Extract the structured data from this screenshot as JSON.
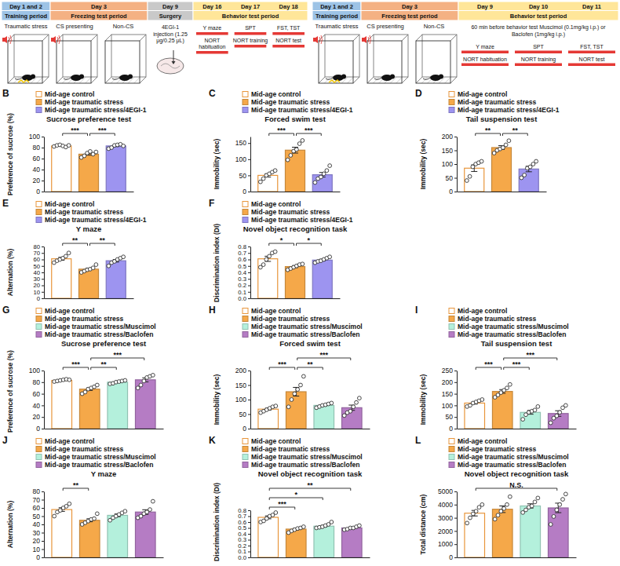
{
  "diagram": {
    "timelines": [
      {
        "segments": [
          {
            "day": "Day 1 and 2",
            "period": "Training period",
            "cages": [
              "Traumatic stress"
            ]
          },
          {
            "day": "Day 3",
            "period": "Freezing test period",
            "cages": [
              "CS presenting",
              "Non-CS"
            ]
          },
          {
            "day": "Day 9",
            "period": "Surgery",
            "note": "4EGI-1 injection (1.25 μg/0.25 μL)"
          },
          {
            "days": [
              "Day 16",
              "Day 17",
              "Day 18"
            ],
            "period": "Behavior test period",
            "tests": [
              [
                "Y maze",
                "NORT habituation"
              ],
              [
                "SPT",
                "NORT training"
              ],
              [
                "FST, TST",
                "NORT test"
              ]
            ]
          }
        ]
      },
      {
        "segments": [
          {
            "day": "Day 1 and 2",
            "period": "Training period",
            "cages": [
              "Traumatic stress"
            ]
          },
          {
            "day": "Day 3",
            "period": "Freezing test period",
            "cages": [
              "CS presenting",
              "Non-CS"
            ]
          },
          {
            "days": [
              "Day 9",
              "Day 10",
              "Day 11"
            ],
            "period": "Behavior test period",
            "note": "60 min before behavior test Muscimol (0.1mg/kg i.p.) or Baclofen (1mg/kg i.p.)",
            "tests": [
              [
                "Y maze",
                "NORT habituation"
              ],
              [
                "SPT",
                "NORT training"
              ],
              [
                "FST, TST",
                "NORT test"
              ]
            ]
          }
        ]
      }
    ]
  },
  "chart_data": [
    {
      "type": "bar",
      "panel": "B",
      "title": "Sucrose preference test",
      "y_label": "Preference of sucrose (%)",
      "categories": [
        "Mid-age control",
        "Mid-age traumatic stress",
        "Mid-age traumatic stress/4EGI-1"
      ],
      "colors": [
        "#ffffff",
        "#f5a849",
        "#9d94f0"
      ],
      "values": [
        83,
        68,
        83
      ],
      "errors": [
        0.6,
        1.8,
        1.2
      ],
      "points": [
        [
          82,
          84,
          85,
          83,
          81,
          84
        ],
        [
          62,
          65,
          70,
          73,
          68,
          72
        ],
        [
          78,
          80,
          84,
          85,
          86,
          83
        ]
      ],
      "ylim": [
        0,
        100
      ],
      "yticks": [
        0,
        20,
        40,
        60,
        80,
        100
      ],
      "annotations": [
        {
          "text": "***",
          "between": [
            0,
            1
          ]
        },
        {
          "text": "***",
          "between": [
            1,
            2
          ]
        }
      ],
      "legend": "top",
      "tick_labels": "y"
    },
    {
      "type": "bar",
      "panel": "C",
      "title": "Forced swim test",
      "y_label": "Immobility (sec)",
      "categories": [
        "Mid-age control",
        "Mid-age traumatic stress",
        "Mid-age traumatic stress/4EGI-1"
      ],
      "colors": [
        "#ffffff",
        "#f5a849",
        "#9d94f0"
      ],
      "values": [
        50,
        128,
        52
      ],
      "errors": [
        5,
        9,
        7
      ],
      "points": [
        [
          30,
          40,
          50,
          55,
          60,
          65
        ],
        [
          98,
          112,
          125,
          130,
          148,
          158
        ],
        [
          28,
          40,
          45,
          55,
          65,
          80
        ]
      ],
      "ylim": [
        0,
        170
      ],
      "yticks": [
        0,
        50,
        100,
        150
      ],
      "annotations": [
        {
          "text": "***",
          "between": [
            0,
            1
          ]
        },
        {
          "text": "***",
          "between": [
            1,
            2
          ]
        }
      ],
      "legend": "top",
      "tick_labels": "y"
    },
    {
      "type": "bar",
      "panel": "D",
      "title": "Tail suspension test",
      "y_label": "Immobility (sec)",
      "categories": [
        "Mid-age control",
        "Mid-age traumatic stress",
        "Mid-age traumatic stress/4EGI-1"
      ],
      "colors": [
        "#ffffff",
        "#f5a849",
        "#9d94f0"
      ],
      "values": [
        85,
        160,
        82
      ],
      "errors": [
        12,
        7,
        10
      ],
      "points": [
        [
          40,
          55,
          90,
          100,
          105,
          110
        ],
        [
          140,
          150,
          155,
          160,
          170,
          185
        ],
        [
          50,
          60,
          85,
          90,
          100,
          110
        ]
      ],
      "ylim": [
        0,
        200
      ],
      "yticks": [
        0,
        50,
        100,
        150,
        200
      ],
      "annotations": [
        {
          "text": "**",
          "between": [
            0,
            1
          ]
        },
        {
          "text": "**",
          "between": [
            1,
            2
          ]
        }
      ],
      "legend": "top",
      "tick_labels": "y"
    },
    {
      "type": "bar",
      "panel": "E",
      "title": "Y maze",
      "y_label": "Alternation (%)",
      "categories": [
        "Mid-age control",
        "Mid-age traumatic stress",
        "Mid-age traumatic stress/4EGI-1"
      ],
      "colors": [
        "#ffffff",
        "#f5a849",
        "#9d94f0"
      ],
      "values": [
        61,
        45,
        58
      ],
      "errors": [
        2.2,
        1.7,
        2
      ],
      "points": [
        [
          55,
          58,
          60,
          62,
          65,
          70
        ],
        [
          40,
          42,
          44,
          45,
          47,
          52
        ],
        [
          50,
          55,
          57,
          60,
          62,
          64
        ]
      ],
      "ylim": [
        0,
        80
      ],
      "yticks": [
        0,
        10,
        20,
        30,
        40,
        50,
        60,
        70,
        80
      ],
      "annotations": [
        {
          "text": "**",
          "between": [
            0,
            1
          ]
        },
        {
          "text": "**",
          "between": [
            1,
            2
          ]
        }
      ],
      "legend": "top",
      "tick_labels": "y"
    },
    {
      "type": "bar",
      "panel": "F",
      "title": "Novel object recognition task",
      "y_label": "Discrimination index (DI)",
      "categories": [
        "Mid-age control",
        "Mid-age traumatic stress",
        "Mid-age traumatic stress/4EGI-1"
      ],
      "colors": [
        "#ffffff",
        "#f5a849",
        "#9d94f0"
      ],
      "values": [
        0.61,
        0.49,
        0.59
      ],
      "errors": [
        0.04,
        0.015,
        0.013
      ],
      "points": [
        [
          0.48,
          0.52,
          0.6,
          0.65,
          0.7,
          0.72
        ],
        [
          0.44,
          0.46,
          0.48,
          0.5,
          0.52,
          0.53
        ],
        [
          0.55,
          0.57,
          0.58,
          0.6,
          0.62,
          0.64
        ]
      ],
      "ylim": [
        0,
        0.8
      ],
      "yticks": [
        {
          "value": 0,
          "label": "0.0"
        },
        0.1,
        0.2,
        0.3,
        0.4,
        0.5,
        0.6,
        0.7,
        0.8
      ],
      "annotations": [
        {
          "text": "*",
          "between": [
            0,
            1
          ]
        },
        {
          "text": "*",
          "between": [
            1,
            2
          ]
        }
      ],
      "legend": "top",
      "tick_labels": "y"
    },
    {
      "type": "bar",
      "panel": "G",
      "title": "Sucrose preference test",
      "y_label": "Preference of sucrose (%)",
      "categories": [
        "Mid-age control",
        "Mid-age traumatic stress",
        "Mid-age traumatic stress/Muscimol",
        "Mid-age traumatic stress/Baclofen"
      ],
      "colors": [
        "#ffffff",
        "#f5a849",
        "#b4f0dc",
        "#b57cc4"
      ],
      "values": [
        83,
        68,
        80,
        84
      ],
      "errors": [
        0.6,
        2.2,
        1,
        3.5
      ],
      "points": [
        [
          81,
          82,
          83,
          84,
          85,
          84
        ],
        [
          60,
          63,
          68,
          70,
          72,
          75
        ],
        [
          77,
          78,
          80,
          81,
          82,
          83
        ],
        [
          70,
          75,
          82,
          88,
          90,
          92
        ]
      ],
      "ylim": [
        0,
        100
      ],
      "yticks": [
        0,
        20,
        40,
        60,
        80,
        100
      ],
      "annotations": [
        {
          "text": "***",
          "between": [
            0,
            1
          ]
        },
        {
          "text": "**",
          "between": [
            1,
            2
          ]
        },
        {
          "text": "***",
          "between": [
            1,
            3
          ]
        }
      ],
      "legend": "top",
      "tick_labels": "y"
    },
    {
      "type": "bar",
      "panel": "H",
      "title": "Forced swim test",
      "y_label": "Immobility (sec)",
      "categories": [
        "Mid-age control",
        "Mid-age traumatic stress",
        "Mid-age traumatic stress/Muscimol",
        "Mid-age traumatic stress/Baclofen"
      ],
      "colors": [
        "#ffffff",
        "#f5a849",
        "#b4f0dc",
        "#b57cc4"
      ],
      "values": [
        67,
        127,
        80,
        72
      ],
      "errors": [
        3.5,
        15,
        2.3,
        9
      ],
      "points": [
        [
          55,
          60,
          65,
          70,
          75,
          78
        ],
        [
          75,
          100,
          120,
          135,
          150,
          180
        ],
        [
          72,
          76,
          80,
          82,
          85,
          88
        ],
        [
          45,
          55,
          60,
          75,
          90,
          105
        ]
      ],
      "ylim": [
        0,
        200
      ],
      "yticks": [
        0,
        50,
        100,
        150,
        200
      ],
      "annotations": [
        {
          "text": "***",
          "between": [
            0,
            1
          ]
        },
        {
          "text": "**",
          "between": [
            1,
            2
          ]
        },
        {
          "text": "***",
          "between": [
            1,
            3
          ]
        }
      ],
      "legend": "top",
      "tick_labels": "y"
    },
    {
      "type": "bar",
      "panel": "I",
      "title": "Tail suspension test",
      "y_label": "Immobility (sec)",
      "categories": [
        "Mid-age control",
        "Mid-age traumatic stress",
        "Mid-age traumatic stress/Muscimol",
        "Mid-age traumatic stress/Baclofen"
      ],
      "colors": [
        "#ffffff",
        "#f5a849",
        "#b4f0dc",
        "#b57cc4"
      ],
      "values": [
        110,
        160,
        70,
        65
      ],
      "errors": [
        4.5,
        8,
        8,
        12
      ],
      "points": [
        [
          95,
          100,
          110,
          115,
          120,
          125
        ],
        [
          135,
          145,
          155,
          165,
          175,
          190
        ],
        [
          40,
          60,
          70,
          75,
          80,
          95
        ],
        [
          25,
          45,
          55,
          70,
          90,
          100
        ]
      ],
      "ylim": [
        0,
        250
      ],
      "yticks": [
        0,
        50,
        100,
        150,
        200,
        250
      ],
      "annotations": [
        {
          "text": "***",
          "between": [
            0,
            1
          ]
        },
        {
          "text": "***",
          "between": [
            1,
            2
          ]
        },
        {
          "text": "***",
          "between": [
            1,
            3
          ]
        }
      ],
      "legend": "top",
      "tick_labels": "y"
    },
    {
      "type": "bar",
      "panel": "J",
      "title": "Y maze",
      "y_label": "Alternation (%)",
      "categories": [
        "Mid-age control",
        "Mid-age traumatic stress",
        "Mid-age traumatic stress/Muscimol",
        "Mid-age traumatic stress/Baclofen"
      ],
      "colors": [
        "#ffffff",
        "#f5a849",
        "#b4f0dc",
        "#b57cc4"
      ],
      "values": [
        58,
        45,
        51,
        55
      ],
      "errors": [
        2.2,
        1.8,
        1.6,
        2.8
      ],
      "points": [
        [
          50,
          55,
          57,
          60,
          62,
          65
        ],
        [
          40,
          42,
          44,
          46,
          47,
          53
        ],
        [
          45,
          48,
          50,
          52,
          54,
          56
        ],
        [
          48,
          50,
          53,
          55,
          58,
          68
        ]
      ],
      "ylim": [
        0,
        80
      ],
      "yticks": [
        0,
        10,
        20,
        30,
        40,
        50,
        60,
        70,
        80
      ],
      "annotations": [
        {
          "text": "**",
          "between": [
            0,
            1
          ]
        }
      ],
      "legend": "top",
      "tick_labels": "y"
    },
    {
      "type": "bar",
      "panel": "K",
      "title": "Novel object recognition task",
      "y_label": "Discrimination index (DI)",
      "categories": [
        "Mid-age control",
        "Mid-age traumatic stress",
        "Mid-age traumatic stress/Muscimol",
        "Mid-age traumatic stress/Baclofen"
      ],
      "colors": [
        "#ffffff",
        "#f5a849",
        "#b4f0dc",
        "#b57cc4"
      ],
      "values": [
        0.68,
        0.48,
        0.53,
        0.5
      ],
      "errors": [
        0.025,
        0.014,
        0.015,
        0.01
      ],
      "points": [
        [
          0.6,
          0.62,
          0.66,
          0.7,
          0.72,
          0.76
        ],
        [
          0.42,
          0.45,
          0.47,
          0.49,
          0.5,
          0.52
        ],
        [
          0.5,
          0.51,
          0.52,
          0.54,
          0.56,
          0.6
        ],
        [
          0.47,
          0.48,
          0.5,
          0.5,
          0.52,
          0.54
        ]
      ],
      "ylim": [
        0,
        0.8
      ],
      "yticks": [
        {
          "value": 0,
          "label": "0.0"
        },
        0.1,
        0.2,
        0.3,
        0.4,
        0.5,
        0.6,
        0.7,
        0.8
      ],
      "annotations": [
        {
          "text": "***",
          "between": [
            0,
            1
          ]
        },
        {
          "text": "*",
          "between": [
            0,
            2
          ]
        },
        {
          "text": "**",
          "between": [
            0,
            3
          ]
        }
      ],
      "legend": "top",
      "tick_labels": "y"
    },
    {
      "type": "bar",
      "panel": "L",
      "title": "Novel object recognition task",
      "y_label": "Total distance (cm)",
      "categories": [
        "Mid-age control",
        "Mid-age traumatic stress",
        "Mid-age traumatic stress/Muscimol",
        "Mid-age traumatic stress/Baclofen"
      ],
      "colors": [
        "#ffffff",
        "#f5a849",
        "#b4f0dc",
        "#b57cc4"
      ],
      "values": [
        3350,
        3650,
        3900,
        3750
      ],
      "errors": [
        210,
        250,
        160,
        360
      ],
      "points": [
        [
          2600,
          3000,
          3300,
          3500,
          3800,
          4000
        ],
        [
          2900,
          3200,
          3500,
          3700,
          4000,
          4600
        ],
        [
          3400,
          3600,
          3800,
          3900,
          4200,
          4500
        ],
        [
          2500,
          3100,
          3600,
          4000,
          4400,
          4800
        ]
      ],
      "ylim": [
        0,
        5000
      ],
      "yticks": [
        0,
        1000,
        2000,
        3000,
        4000,
        5000
      ],
      "annotations": [
        {
          "text": "N.S.",
          "between": [
            0,
            3
          ]
        }
      ],
      "legend": "top",
      "tick_labels": "y"
    }
  ]
}
